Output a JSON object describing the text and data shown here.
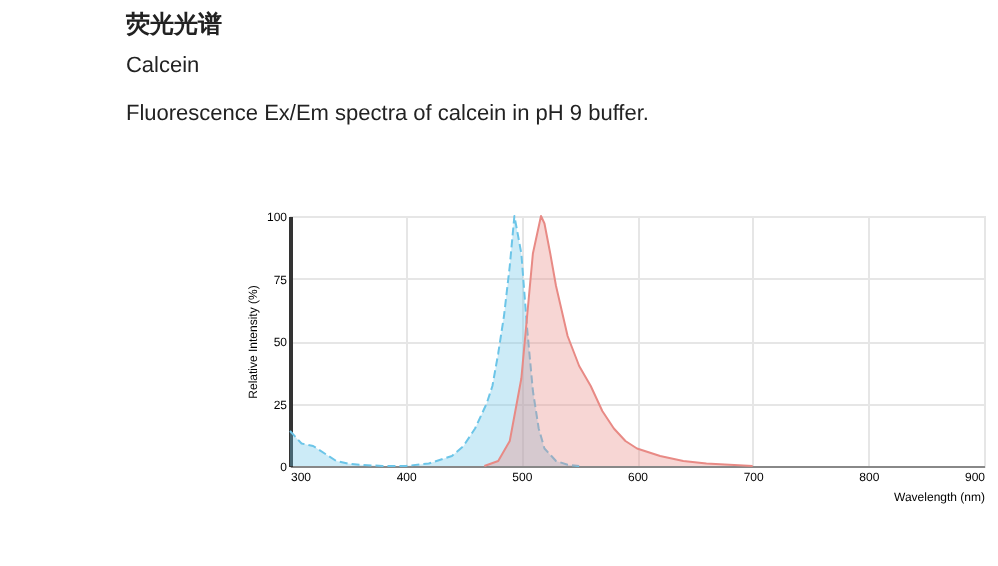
{
  "chart_data": {
    "type": "area",
    "title": "荧光光谱",
    "subtitle": "Calcein",
    "annotations": [
      "Fluorescence Ex/Em spectra of calcein in pH 9 buffer."
    ],
    "xlabel": "Wavelength (nm)",
    "ylabel": "Relative Intensity (%)",
    "xlim": [
      300,
      900
    ],
    "xticks": [
      300,
      400,
      500,
      600,
      700,
      800,
      900
    ],
    "ylim": [
      0,
      100
    ],
    "yticks": [
      0,
      25,
      50,
      75,
      100
    ],
    "grid": true,
    "series": [
      {
        "color": "#6cc5e8",
        "line_style": "dashed",
        "x": [
          300,
          310,
          320,
          330,
          340,
          350,
          360,
          380,
          400,
          420,
          440,
          450,
          460,
          470,
          475,
          480,
          485,
          490,
          494,
          500,
          505,
          510,
          515,
          520,
          530,
          540,
          550
        ],
        "values": [
          14,
          9,
          8,
          5,
          2,
          1,
          0.5,
          0,
          0,
          1,
          4,
          8,
          15,
          25,
          32,
          45,
          60,
          80,
          100,
          85,
          55,
          30,
          15,
          7,
          2,
          0.5,
          0
        ]
      },
      {
        "color": "#e88a85",
        "line_style": "solid",
        "x": [
          468,
          480,
          490,
          500,
          505,
          510,
          517,
          520,
          525,
          530,
          540,
          550,
          560,
          570,
          580,
          590,
          600,
          620,
          640,
          660,
          680,
          700
        ],
        "values": [
          0,
          2,
          10,
          35,
          60,
          85,
          100,
          97,
          85,
          72,
          52,
          40,
          32,
          22,
          15,
          10,
          7,
          4,
          2,
          1,
          0.5,
          0
        ]
      }
    ]
  }
}
